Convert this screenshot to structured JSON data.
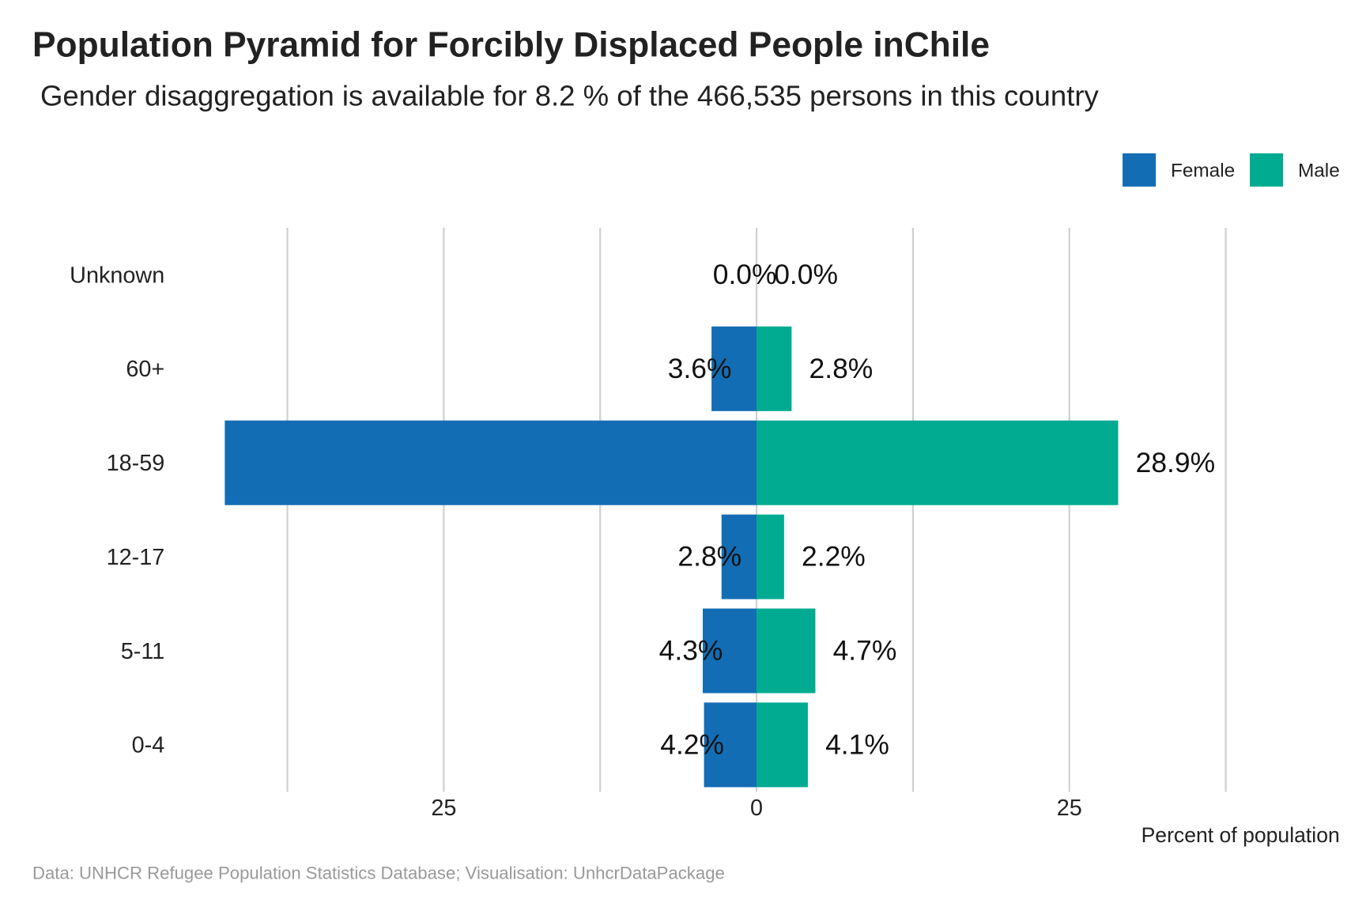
{
  "chart_data": {
    "type": "pyramid",
    "title": "Population Pyramid for Forcibly Displaced People inChile",
    "subtitle": "Gender disaggregation is available for 8.2 % of the 466,535 persons in this country",
    "caption": "Data: UNHCR Refugee Population Statistics Database; Visualisation: UnhcrDataPackage",
    "x_label": "Percent of population",
    "categories": [
      "Unknown",
      "60+",
      "18-59",
      "12-17",
      "5-11",
      "0-4"
    ],
    "series": [
      {
        "name": "Female",
        "color": "#136db4",
        "side": "left",
        "values": [
          0.0,
          3.6,
          42.5,
          2.8,
          4.3,
          4.2
        ],
        "value_labels": [
          "0.0%",
          "3.6%",
          null,
          "2.8%",
          "4.3%",
          "4.2%"
        ]
      },
      {
        "name": "Male",
        "color": "#00ab92",
        "side": "right",
        "values": [
          0.0,
          2.8,
          28.9,
          2.2,
          4.7,
          4.1
        ],
        "value_labels": [
          "0.0%",
          "2.8%",
          "28.9%",
          "2.2%",
          "4.7%",
          "4.1%"
        ]
      }
    ],
    "xlim": [
      -45,
      45
    ],
    "xticks": [
      {
        "value": -25,
        "label": "25"
      },
      0,
      25
    ],
    "xminor": [
      -37.5,
      -12.5,
      12.5,
      37.5
    ],
    "grid": true,
    "legend": "top-right"
  }
}
